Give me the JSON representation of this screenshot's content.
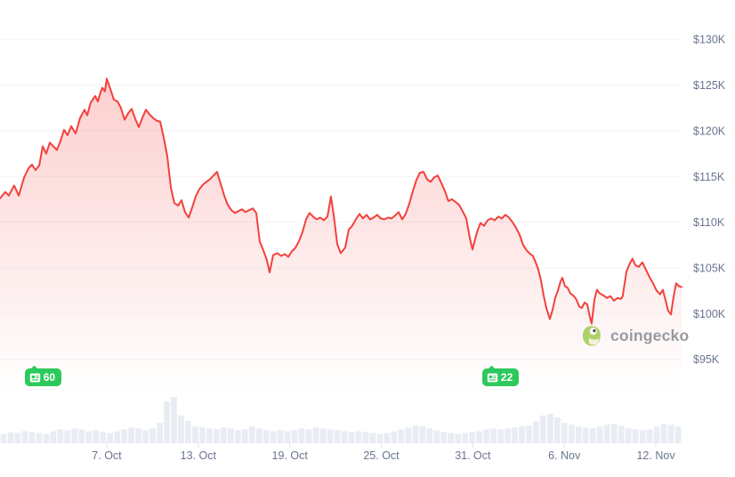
{
  "background": "#ffffff",
  "colors": {
    "line_red": "#f2413d",
    "area_red": "#f2413d",
    "badge_green": "#2ec95c",
    "axis_label": "#6a7590",
    "gridline": "#f3f4f6",
    "tick_mark": "#e2e5ea",
    "volume_bar": "#e9edf3",
    "watermark_text": "#8e9298",
    "gecko_body": "#a6ce5e",
    "gecko_belly": "#f7f0dc",
    "gecko_pupil": "#3c3c3b"
  },
  "watermark": {
    "text": "coingecko"
  },
  "annotations": {
    "news_badges": [
      {
        "count": "60",
        "day": 2.2,
        "icon": "newspaper"
      },
      {
        "count": "22",
        "day": 32.2,
        "icon": "newspaper"
      }
    ]
  },
  "chart_data": {
    "type": "line",
    "title": "",
    "xlabel": "",
    "ylabel": "",
    "grid": true,
    "legend": false,
    "x_unit": "days since chart start (time axis, dates shown as ticks)",
    "xlim": [
      0,
      44.69
    ],
    "x_ticks": [
      {
        "day": 7,
        "label": "7. Oct"
      },
      {
        "day": 13,
        "label": "13. Oct"
      },
      {
        "day": 19,
        "label": "19. Oct"
      },
      {
        "day": 25,
        "label": "25. Oct"
      },
      {
        "day": 31,
        "label": "31. Oct"
      },
      {
        "day": 37,
        "label": "6. Nov"
      },
      {
        "day": 43,
        "label": "12. Nov"
      }
    ],
    "y_unit": "USD thousands",
    "y_tick_step": 5,
    "y_ticks": [
      {
        "value": 130,
        "label": "$130K"
      },
      {
        "value": 125,
        "label": "$125K"
      },
      {
        "value": 120,
        "label": "$120K"
      },
      {
        "value": 115,
        "label": "$115K"
      },
      {
        "value": 110,
        "label": "$110K"
      },
      {
        "value": 105,
        "label": "$105K"
      },
      {
        "value": 100,
        "label": "$100K"
      },
      {
        "value": 95,
        "label": "$95K"
      }
    ],
    "price_series": {
      "name": "price",
      "unit": "USD thousands",
      "points": [
        [
          0,
          112.6
        ],
        [
          0.35,
          113.3
        ],
        [
          0.58,
          112.9
        ],
        [
          0.93,
          114.0
        ],
        [
          1.23,
          112.9
        ],
        [
          1.58,
          114.9
        ],
        [
          1.87,
          115.9
        ],
        [
          2.1,
          116.3
        ],
        [
          2.33,
          115.7
        ],
        [
          2.57,
          116.2
        ],
        [
          2.8,
          118.3
        ],
        [
          3.03,
          117.5
        ],
        [
          3.27,
          118.7
        ],
        [
          3.5,
          118.3
        ],
        [
          3.73,
          117.9
        ],
        [
          3.97,
          118.9
        ],
        [
          4.2,
          120.1
        ],
        [
          4.43,
          119.5
        ],
        [
          4.67,
          120.5
        ],
        [
          4.96,
          119.7
        ],
        [
          5.25,
          121.4
        ],
        [
          5.54,
          122.3
        ],
        [
          5.72,
          121.7
        ],
        [
          5.95,
          123.1
        ],
        [
          6.24,
          123.8
        ],
        [
          6.42,
          123.2
        ],
        [
          6.59,
          124.2
        ],
        [
          6.71,
          124.7
        ],
        [
          6.88,
          124.3
        ],
        [
          7.0,
          125.7
        ],
        [
          7.23,
          124.6
        ],
        [
          7.47,
          123.4
        ],
        [
          7.7,
          123.2
        ],
        [
          7.93,
          122.5
        ],
        [
          8.17,
          121.2
        ],
        [
          8.4,
          121.9
        ],
        [
          8.63,
          122.4
        ],
        [
          8.87,
          121.3
        ],
        [
          9.1,
          120.4
        ],
        [
          9.33,
          121.4
        ],
        [
          9.57,
          122.3
        ],
        [
          9.8,
          121.8
        ],
        [
          10.03,
          121.4
        ],
        [
          10.27,
          121.1
        ],
        [
          10.5,
          121.0
        ],
        [
          10.73,
          119.3
        ],
        [
          10.97,
          117.2
        ],
        [
          11.2,
          113.8
        ],
        [
          11.43,
          112.1
        ],
        [
          11.67,
          111.8
        ],
        [
          11.9,
          112.4
        ],
        [
          12.13,
          111.1
        ],
        [
          12.37,
          110.5
        ],
        [
          12.6,
          111.6
        ],
        [
          12.83,
          112.8
        ],
        [
          13.07,
          113.6
        ],
        [
          13.3,
          114.1
        ],
        [
          13.53,
          114.4
        ],
        [
          13.77,
          114.7
        ],
        [
          14.0,
          115.1
        ],
        [
          14.23,
          115.5
        ],
        [
          14.47,
          114.2
        ],
        [
          14.7,
          112.9
        ],
        [
          14.93,
          111.9
        ],
        [
          15.17,
          111.3
        ],
        [
          15.4,
          111.0
        ],
        [
          15.63,
          111.2
        ],
        [
          15.87,
          111.4
        ],
        [
          16.1,
          111.1
        ],
        [
          16.33,
          111.3
        ],
        [
          16.57,
          111.5
        ],
        [
          16.8,
          111.0
        ],
        [
          17.03,
          107.9
        ],
        [
          17.27,
          106.9
        ],
        [
          17.5,
          105.8
        ],
        [
          17.68,
          104.5
        ],
        [
          17.91,
          106.4
        ],
        [
          18.2,
          106.6
        ],
        [
          18.43,
          106.3
        ],
        [
          18.67,
          106.5
        ],
        [
          18.9,
          106.2
        ],
        [
          19.13,
          106.8
        ],
        [
          19.37,
          107.2
        ],
        [
          19.6,
          107.9
        ],
        [
          19.83,
          108.9
        ],
        [
          20.07,
          110.3
        ],
        [
          20.3,
          111.0
        ],
        [
          20.53,
          110.6
        ],
        [
          20.77,
          110.3
        ],
        [
          21.0,
          110.5
        ],
        [
          21.23,
          110.2
        ],
        [
          21.47,
          110.6
        ],
        [
          21.7,
          112.8
        ],
        [
          21.88,
          110.8
        ],
        [
          22.11,
          107.6
        ],
        [
          22.34,
          106.6
        ],
        [
          22.63,
          107.2
        ],
        [
          22.87,
          109.2
        ],
        [
          23.1,
          109.6
        ],
        [
          23.33,
          110.3
        ],
        [
          23.57,
          110.9
        ],
        [
          23.8,
          110.4
        ],
        [
          24.03,
          110.8
        ],
        [
          24.27,
          110.3
        ],
        [
          24.5,
          110.5
        ],
        [
          24.73,
          110.8
        ],
        [
          24.97,
          110.4
        ],
        [
          25.2,
          110.3
        ],
        [
          25.43,
          110.5
        ],
        [
          25.67,
          110.4
        ],
        [
          25.9,
          110.7
        ],
        [
          26.13,
          111.1
        ],
        [
          26.37,
          110.3
        ],
        [
          26.6,
          110.9
        ],
        [
          26.83,
          112.0
        ],
        [
          27.07,
          113.4
        ],
        [
          27.3,
          114.6
        ],
        [
          27.53,
          115.4
        ],
        [
          27.77,
          115.5
        ],
        [
          28.0,
          114.7
        ],
        [
          28.23,
          114.4
        ],
        [
          28.47,
          114.9
        ],
        [
          28.7,
          115.1
        ],
        [
          28.93,
          114.3
        ],
        [
          29.17,
          113.4
        ],
        [
          29.4,
          112.3
        ],
        [
          29.63,
          112.5
        ],
        [
          29.87,
          112.2
        ],
        [
          30.1,
          111.9
        ],
        [
          30.33,
          111.2
        ],
        [
          30.57,
          110.4
        ],
        [
          30.8,
          108.3
        ],
        [
          30.98,
          107.0
        ],
        [
          31.27,
          108.9
        ],
        [
          31.5,
          109.9
        ],
        [
          31.73,
          109.6
        ],
        [
          31.97,
          110.2
        ],
        [
          32.2,
          110.4
        ],
        [
          32.43,
          110.2
        ],
        [
          32.67,
          110.6
        ],
        [
          32.9,
          110.4
        ],
        [
          33.13,
          110.8
        ],
        [
          33.37,
          110.5
        ],
        [
          33.6,
          110.0
        ],
        [
          33.83,
          109.4
        ],
        [
          34.07,
          108.6
        ],
        [
          34.3,
          107.5
        ],
        [
          34.53,
          106.9
        ],
        [
          34.77,
          106.5
        ],
        [
          34.94,
          106.3
        ],
        [
          35.12,
          105.6
        ],
        [
          35.29,
          104.8
        ],
        [
          35.47,
          103.6
        ],
        [
          35.64,
          102.0
        ],
        [
          35.82,
          100.6
        ],
        [
          36.05,
          99.4
        ],
        [
          36.23,
          100.4
        ],
        [
          36.4,
          101.7
        ],
        [
          36.58,
          102.5
        ],
        [
          36.75,
          103.5
        ],
        [
          36.87,
          103.9
        ],
        [
          37.04,
          103.0
        ],
        [
          37.22,
          102.8
        ],
        [
          37.39,
          102.2
        ],
        [
          37.63,
          101.9
        ],
        [
          37.8,
          101.5
        ],
        [
          37.97,
          100.8
        ],
        [
          38.15,
          100.6
        ],
        [
          38.33,
          101.2
        ],
        [
          38.5,
          101.0
        ],
        [
          38.68,
          99.6
        ],
        [
          38.79,
          98.9
        ],
        [
          38.97,
          101.5
        ],
        [
          39.14,
          102.6
        ],
        [
          39.32,
          102.2
        ],
        [
          39.55,
          102.0
        ],
        [
          39.79,
          101.7
        ],
        [
          40.02,
          101.9
        ],
        [
          40.25,
          101.4
        ],
        [
          40.49,
          101.7
        ],
        [
          40.72,
          101.6
        ],
        [
          40.83,
          101.9
        ],
        [
          41.07,
          104.6
        ],
        [
          41.3,
          105.5
        ],
        [
          41.47,
          106.0
        ],
        [
          41.65,
          105.3
        ],
        [
          41.88,
          105.1
        ],
        [
          42.12,
          105.6
        ],
        [
          42.35,
          104.8
        ],
        [
          42.58,
          104.0
        ],
        [
          42.82,
          103.3
        ],
        [
          43.05,
          102.5
        ],
        [
          43.28,
          102.1
        ],
        [
          43.46,
          102.6
        ],
        [
          43.63,
          101.5
        ],
        [
          43.81,
          100.3
        ],
        [
          43.99,
          99.9
        ],
        [
          44.16,
          101.8
        ],
        [
          44.33,
          103.3
        ],
        [
          44.51,
          103.0
        ],
        [
          44.69,
          102.9
        ]
      ]
    },
    "volume_series": {
      "name": "volume",
      "unit": "relative 0-100 (no numeric scale shown in image)",
      "values": [
        20,
        24,
        22,
        26,
        24,
        22,
        20,
        26,
        30,
        28,
        32,
        30,
        26,
        28,
        24,
        22,
        26,
        30,
        34,
        32,
        28,
        32,
        44,
        90,
        100,
        60,
        48,
        36,
        34,
        32,
        30,
        34,
        32,
        28,
        30,
        36,
        32,
        28,
        26,
        28,
        26,
        28,
        32,
        30,
        34,
        32,
        30,
        28,
        26,
        24,
        26,
        24,
        22,
        20,
        22,
        26,
        30,
        34,
        38,
        36,
        32,
        28,
        24,
        22,
        20,
        22,
        24,
        26,
        30,
        32,
        30,
        32,
        34,
        36,
        38,
        48,
        60,
        64,
        56,
        44,
        40,
        36,
        34,
        32,
        36,
        40,
        42,
        38,
        32,
        30,
        28,
        30,
        36,
        42,
        40,
        36
      ]
    }
  }
}
